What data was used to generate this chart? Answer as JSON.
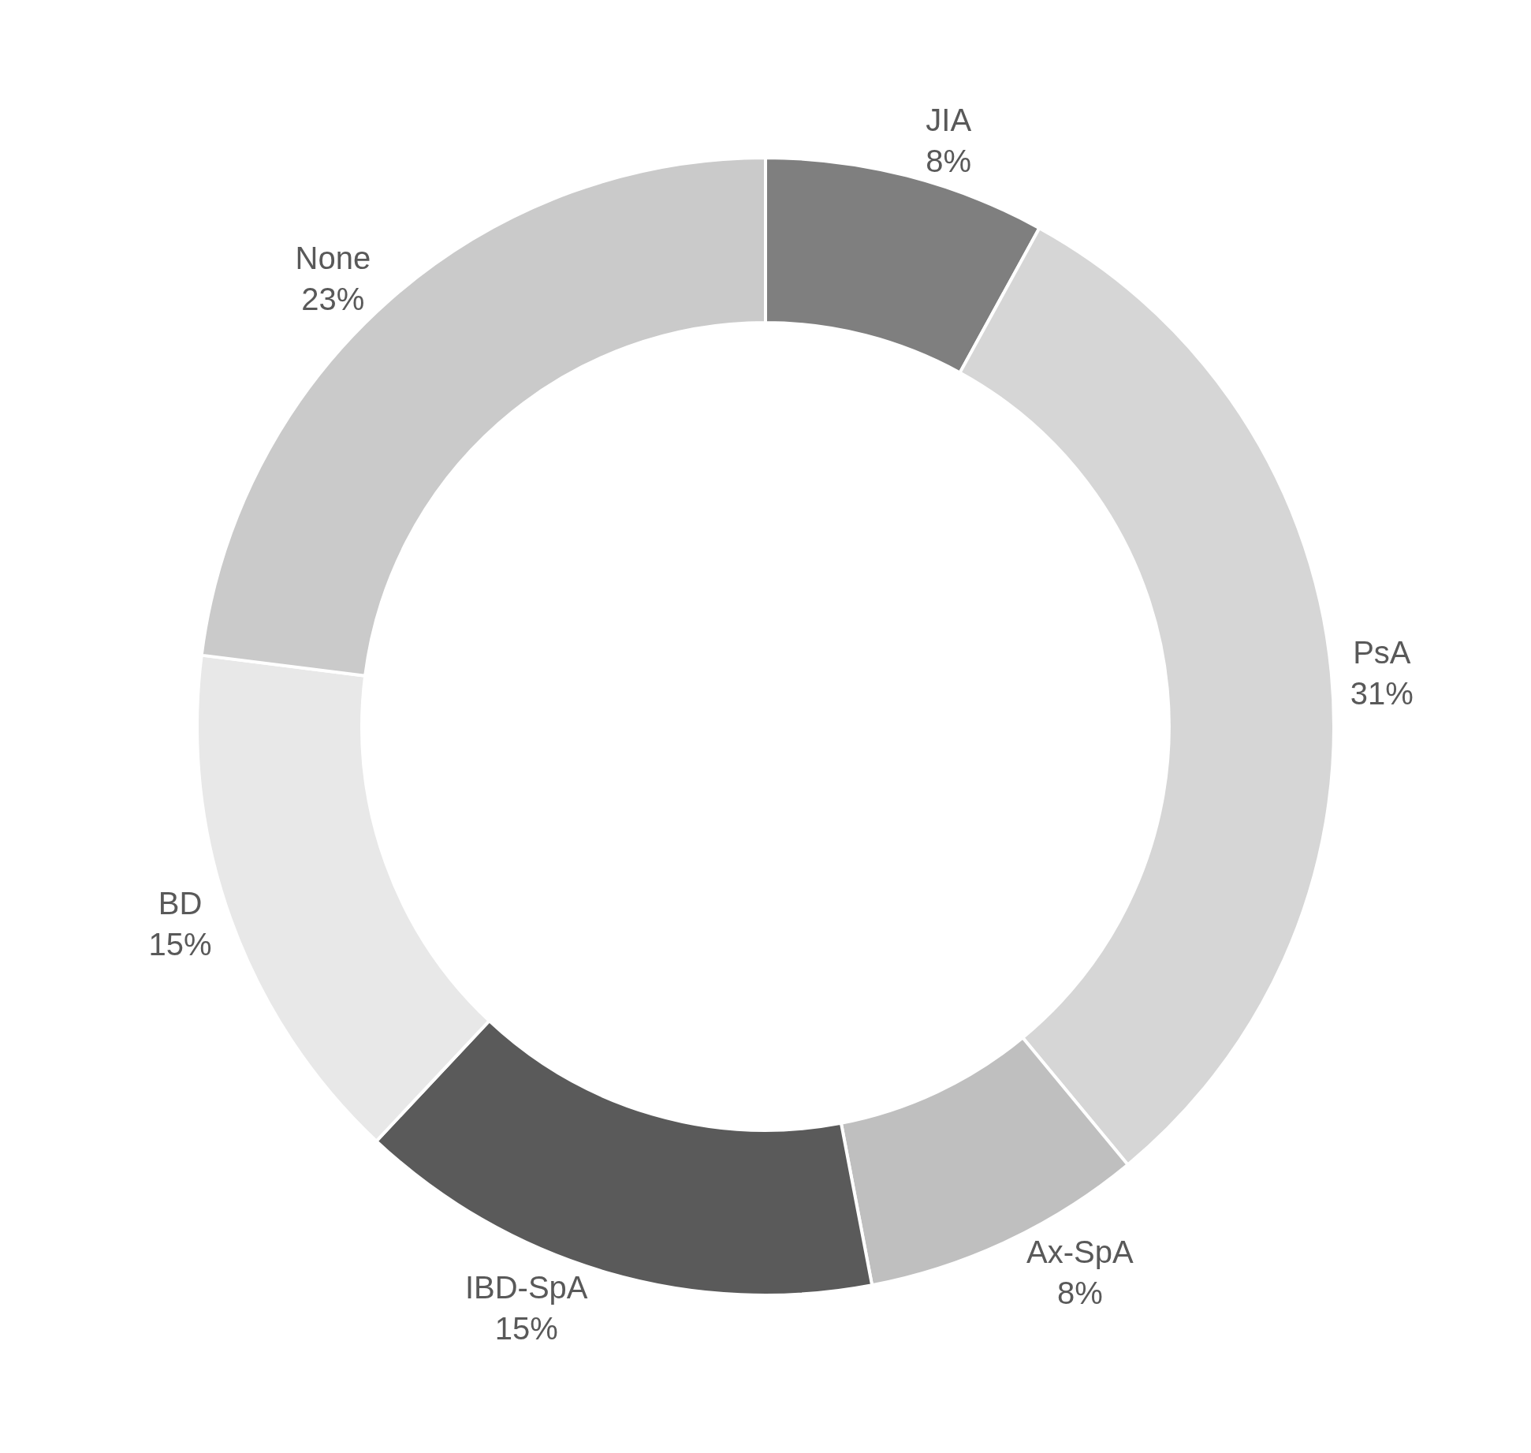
{
  "chart_data": {
    "type": "donut",
    "categories": [
      "JIA",
      "PsA",
      "Ax-SpA",
      "IBD-SpA",
      "BD",
      "None"
    ],
    "values": [
      8,
      31,
      8,
      15,
      15,
      23
    ],
    "value_labels": [
      "8%",
      "31%",
      "8%",
      "15%",
      "15%",
      "23%"
    ],
    "colors": [
      "#7f7f7f",
      "#d6d6d6",
      "#bfbfbf",
      "#5a5a5a",
      "#e8e8e8",
      "#cacaca"
    ],
    "legend": false
  }
}
